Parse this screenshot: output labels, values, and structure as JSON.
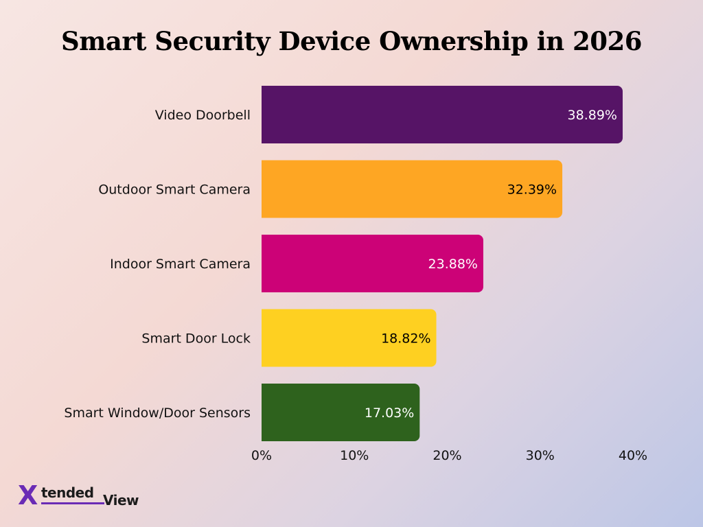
{
  "chart_data": {
    "type": "bar",
    "orientation": "horizontal",
    "title": "Smart Security Device Ownership in 2026",
    "categories": [
      "Video Doorbell",
      "Outdoor Smart Camera",
      "Indoor Smart Camera",
      "Smart Door Lock",
      "Smart Window/Door Sensors"
    ],
    "values": [
      38.89,
      32.39,
      23.88,
      18.82,
      17.03
    ],
    "value_labels": [
      "38.89%",
      "32.39%",
      "23.88%",
      "18.82%",
      "17.03%"
    ],
    "colors": [
      "#561466",
      "#fea623",
      "#cc0277",
      "#fed021",
      "#2e621d"
    ],
    "label_colors": [
      "#ffffff",
      "#000000",
      "#ffffff",
      "#000000",
      "#ffffff"
    ],
    "xlim": [
      0,
      40
    ],
    "x_ticks": [
      0,
      10,
      20,
      30,
      40
    ],
    "x_tick_labels": [
      "0%",
      "10%",
      "20%",
      "30%",
      "40%"
    ],
    "grid": false,
    "xlabel": "",
    "ylabel": ""
  },
  "logo": {
    "text": "XtendedView",
    "mark": "X",
    "part1": "tended",
    "part2": "View"
  }
}
